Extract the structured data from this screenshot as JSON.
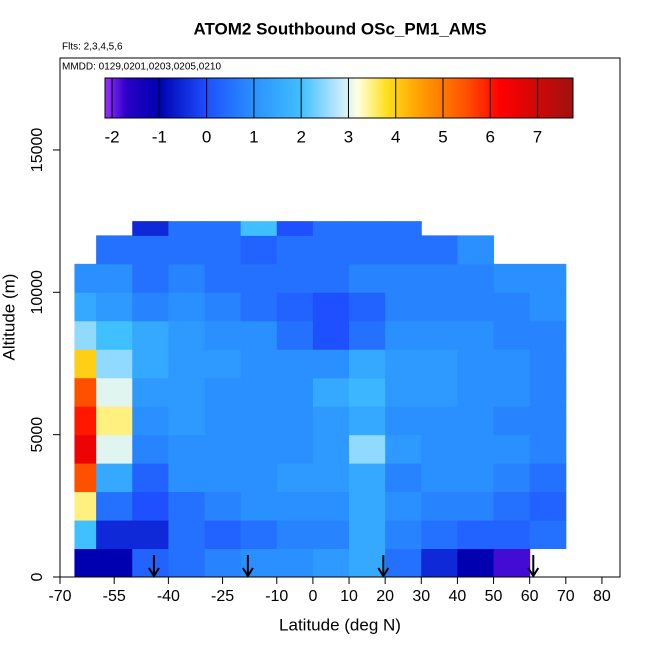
{
  "chart_data": {
    "type": "heatmap",
    "title": "ATOM2 Southbound OSc_PM1_AMS",
    "annotations": [
      "Flts: 2,3,4,5,6",
      "MMDD: 0129,0201,0203,0205,0210"
    ],
    "x_label": "Latitude (deg N)",
    "y_label": "Altitude (m)",
    "xlim": [
      -70,
      85
    ],
    "ylim": [
      0,
      18230
    ],
    "xticks": [
      -70,
      -55,
      -40,
      -25,
      -10,
      0,
      10,
      20,
      30,
      40,
      50,
      60,
      70,
      80
    ],
    "yticks": [
      0,
      5000,
      10000,
      15000
    ],
    "x_edges": [
      -66,
      -60,
      -50,
      -40,
      -30,
      -20,
      -10,
      0,
      10,
      20,
      30,
      40,
      50,
      60,
      70
    ],
    "y_edges": [
      0,
      1000,
      2000,
      3000,
      4000,
      5000,
      6000,
      7000,
      8000,
      9000,
      10000,
      11000,
      12000,
      12500
    ],
    "z": [
      [
        -1,
        -1,
        0.3,
        0.5,
        0.8,
        1,
        1,
        1.2,
        1.5,
        0.5,
        -0.5,
        -1,
        -1.8,
        null
      ],
      [
        2,
        -0.5,
        -0.5,
        0.5,
        0.3,
        0.5,
        0.8,
        0.8,
        1.5,
        0.8,
        0.5,
        0.3,
        0.3,
        0.5
      ],
      [
        3.5,
        0.5,
        0,
        0.5,
        0.8,
        1,
        1,
        1,
        1.5,
        1,
        0.8,
        0.8,
        0.5,
        0.3
      ],
      [
        5.5,
        1.5,
        0.3,
        1,
        1,
        1,
        1.2,
        1.2,
        1.5,
        0.8,
        1,
        1,
        0.8,
        0.5
      ],
      [
        6.5,
        3,
        0.8,
        1,
        1,
        1,
        1,
        1.2,
        2.5,
        1.2,
        1,
        1,
        1,
        0.8
      ],
      [
        6,
        3.5,
        1,
        1.2,
        1,
        1,
        1,
        1.2,
        1.5,
        1,
        1,
        1,
        0.8,
        0.8
      ],
      [
        5.5,
        3,
        1.2,
        1.2,
        1,
        1,
        1,
        1.5,
        1.8,
        1.2,
        1.2,
        1,
        1,
        0.8
      ],
      [
        4,
        2.5,
        1.5,
        1.2,
        1.2,
        1,
        1,
        1,
        1.5,
        1.2,
        1.2,
        1,
        1,
        0.8
      ],
      [
        2.5,
        2,
        1.5,
        1.2,
        1,
        1,
        0.5,
        0,
        0.5,
        1,
        1,
        1,
        0.8,
        0.8
      ],
      [
        1.5,
        1.2,
        0.8,
        1,
        0.8,
        0.5,
        0.3,
        0,
        0.3,
        0.8,
        0.8,
        0.8,
        0.8,
        1
      ],
      [
        1,
        1,
        0.5,
        0.8,
        0.5,
        0.5,
        0.5,
        0.5,
        0.8,
        0.8,
        0.8,
        0.8,
        1,
        1
      ],
      [
        null,
        0.5,
        0.5,
        0.5,
        0.5,
        0.3,
        0.5,
        0.5,
        0.5,
        0.5,
        0.5,
        1,
        null,
        null
      ],
      [
        null,
        null,
        -0.5,
        0.5,
        0.5,
        2,
        0,
        0.5,
        0.5,
        0.5,
        null,
        null,
        null,
        null
      ]
    ],
    "arrows_x": [
      -44,
      -18,
      19.5,
      61
    ],
    "colorbar": {
      "lim": [
        -2.15,
        7.75
      ],
      "ticks": [
        -2,
        -1,
        0,
        1,
        2,
        3,
        4,
        5,
        6,
        7
      ],
      "stops": [
        [
          -2.15,
          "#9b30ff"
        ],
        [
          -1.7,
          "#2a00c8"
        ],
        [
          -1,
          "#0000b0"
        ],
        [
          0,
          "#1e50ff"
        ],
        [
          1,
          "#2a90ff"
        ],
        [
          2,
          "#40c0ff"
        ],
        [
          2.8,
          "#c0e8ff"
        ],
        [
          3.2,
          "#ffffe0"
        ],
        [
          3.8,
          "#ffe020"
        ],
        [
          4.5,
          "#ffa000"
        ],
        [
          5.5,
          "#ff5000"
        ],
        [
          6.2,
          "#ff0000"
        ],
        [
          7.75,
          "#a01010"
        ]
      ]
    }
  }
}
